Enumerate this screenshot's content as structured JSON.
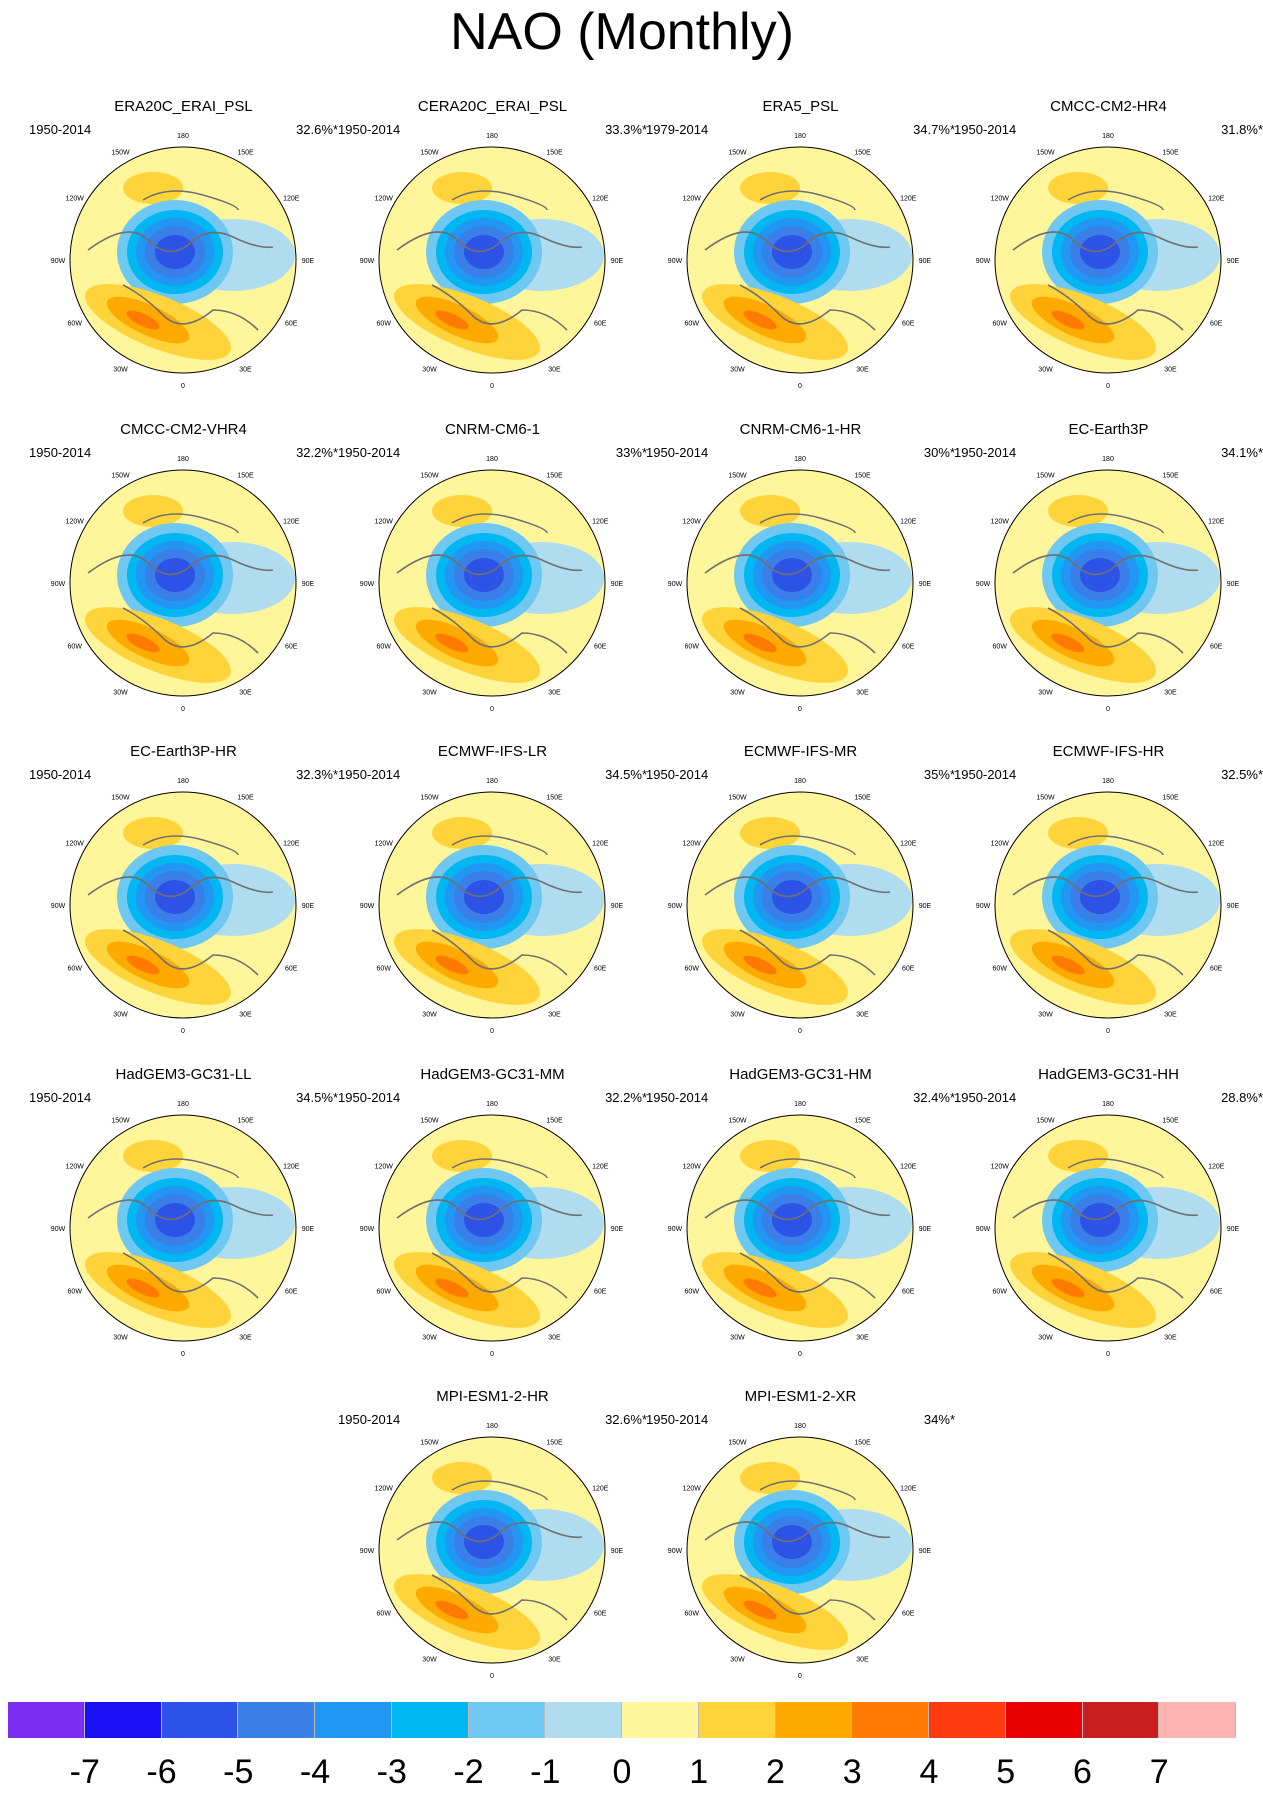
{
  "title": "NAO (Monthly)",
  "longitude_labels": [
    "180",
    "150E",
    "120E",
    "90E",
    "60E",
    "30E",
    "0",
    "30W",
    "60W",
    "90W",
    "120W",
    "150W"
  ],
  "panels": [
    {
      "name": "ERA20C_ERAI_PSL",
      "period": "1950-2014",
      "variance": "32.6%*"
    },
    {
      "name": "CERA20C_ERAI_PSL",
      "period": "1950-2014",
      "variance": "33.3%*"
    },
    {
      "name": "ERA5_PSL",
      "period": "1979-2014",
      "variance": "34.7%*"
    },
    {
      "name": "CMCC-CM2-HR4",
      "period": "1950-2014",
      "variance": "31.8%*"
    },
    {
      "name": "CMCC-CM2-VHR4",
      "period": "1950-2014",
      "variance": "32.2%*"
    },
    {
      "name": "CNRM-CM6-1",
      "period": "1950-2014",
      "variance": "33%*"
    },
    {
      "name": "CNRM-CM6-1-HR",
      "period": "1950-2014",
      "variance": "30%*"
    },
    {
      "name": "EC-Earth3P",
      "period": "1950-2014",
      "variance": "34.1%*"
    },
    {
      "name": "EC-Earth3P-HR",
      "period": "1950-2014",
      "variance": "32.3%*"
    },
    {
      "name": "ECMWF-IFS-LR",
      "period": "1950-2014",
      "variance": "34.5%*"
    },
    {
      "name": "ECMWF-IFS-MR",
      "period": "1950-2014",
      "variance": "35%*"
    },
    {
      "name": "ECMWF-IFS-HR",
      "period": "1950-2014",
      "variance": "32.5%*"
    },
    {
      "name": "HadGEM3-GC31-LL",
      "period": "1950-2014",
      "variance": "34.5%*"
    },
    {
      "name": "HadGEM3-GC31-MM",
      "period": "1950-2014",
      "variance": "32.2%*"
    },
    {
      "name": "HadGEM3-GC31-HM",
      "period": "1950-2014",
      "variance": "32.4%*"
    },
    {
      "name": "HadGEM3-GC31-HH",
      "period": "1950-2014",
      "variance": "28.8%*"
    },
    {
      "name": "MPI-ESM1-2-HR",
      "period": "1950-2014",
      "variance": "32.6%*"
    },
    {
      "name": "MPI-ESM1-2-XR",
      "period": "1950-2014",
      "variance": "34%*"
    }
  ],
  "colorbar": {
    "labels": [
      "-7",
      "-6",
      "-5",
      "-4",
      "-3",
      "-2",
      "-1",
      "0",
      "1",
      "2",
      "3",
      "4",
      "5",
      "6",
      "7"
    ],
    "colors": [
      "#7b2ff0",
      "#1a12f5",
      "#2d52e6",
      "#3a7ee8",
      "#2196f3",
      "#00b7f1",
      "#6fc8f2",
      "#b0dcf0",
      "#fff59a",
      "#ffd43a",
      "#ffaa00",
      "#ff7a00",
      "#ff3b10",
      "#e80000",
      "#c81e1e",
      "#ffb3b3"
    ]
  }
}
